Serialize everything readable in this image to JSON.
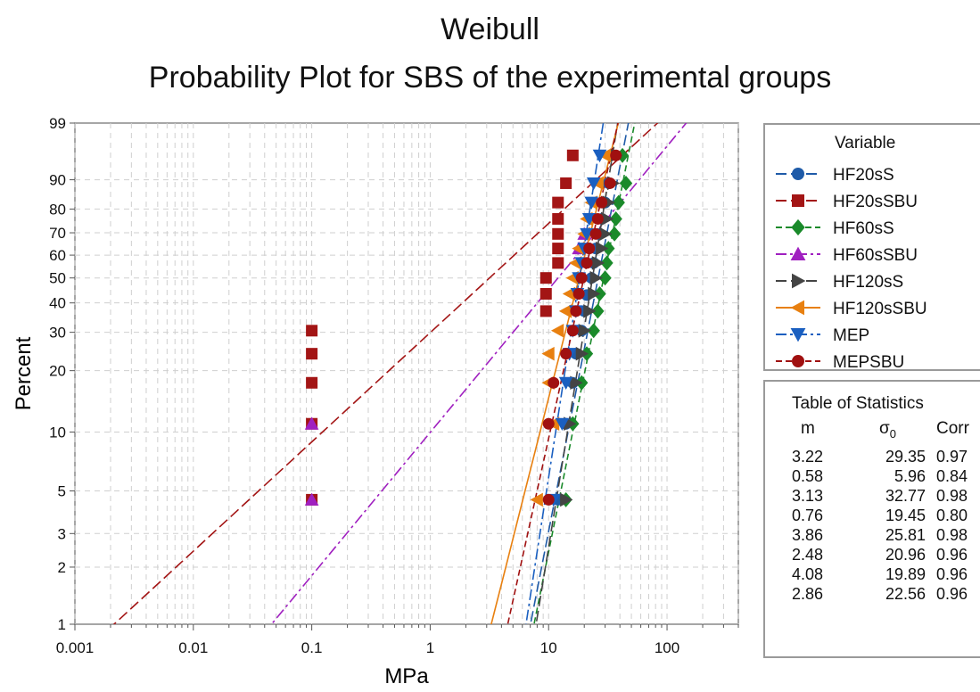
{
  "title": "Weibull",
  "subtitle": "Probability Plot for SBS of the experimental groups",
  "chart_data": {
    "type": "scatter",
    "xlabel": "MPa",
    "ylabel": "Percent",
    "xscale": "log",
    "yscale": "weibull",
    "xlim": [
      0.001,
      400
    ],
    "ylim": [
      1,
      99
    ],
    "xticks": [
      "0.001",
      "0.01",
      "0.1",
      "1",
      "10",
      "100"
    ],
    "yticks": [
      "1",
      "2",
      "3",
      "5",
      "10",
      "20",
      "30",
      "40",
      "50",
      "60",
      "70",
      "80",
      "90",
      "99"
    ],
    "grid": true,
    "legend_title": "Variable",
    "legend_position": "right",
    "series": [
      {
        "name": "HF20sS",
        "color": "#1f5ba8",
        "marker": "circle",
        "line": "long-dash",
        "m": 3.22,
        "s0": 29.35,
        "points": [
          [
            12,
            4.5
          ],
          [
            14,
            11
          ],
          [
            16,
            17.5
          ],
          [
            17,
            24
          ],
          [
            19,
            30.5
          ],
          [
            20,
            37
          ],
          [
            21,
            43
          ],
          [
            23,
            50
          ],
          [
            24,
            56.5
          ],
          [
            25,
            63
          ],
          [
            26,
            69.5
          ],
          [
            28,
            76
          ],
          [
            30,
            82.5
          ],
          [
            32,
            89
          ]
        ]
      },
      {
        "name": "HF20sSBU",
        "color": "#a31515",
        "marker": "square",
        "line": "long-dash",
        "m": 0.58,
        "s0": 5.96,
        "points": [
          [
            0.1,
            4.5
          ],
          [
            0.1,
            11
          ],
          [
            0.1,
            17.5
          ],
          [
            0.1,
            24
          ],
          [
            0.1,
            30.5
          ],
          [
            9.5,
            37
          ],
          [
            9.5,
            43.5
          ],
          [
            9.5,
            50
          ],
          [
            12,
            56.5
          ],
          [
            12,
            63
          ],
          [
            12,
            69.5
          ],
          [
            12,
            76
          ],
          [
            12,
            82.5
          ],
          [
            14,
            89
          ],
          [
            16,
            95.5
          ]
        ]
      },
      {
        "name": "HF60sS",
        "color": "#1a8a2a",
        "marker": "diamond",
        "line": "dash",
        "m": 3.13,
        "s0": 32.77,
        "points": [
          [
            14,
            4.5
          ],
          [
            16,
            11
          ],
          [
            19,
            17.5
          ],
          [
            21,
            24
          ],
          [
            24,
            30.5
          ],
          [
            26,
            37
          ],
          [
            27,
            43.5
          ],
          [
            30,
            50
          ],
          [
            31,
            56.5
          ],
          [
            32,
            63
          ],
          [
            36,
            69.5
          ],
          [
            37,
            76
          ],
          [
            39,
            82.5
          ],
          [
            45,
            89
          ],
          [
            42,
            95.5
          ]
        ]
      },
      {
        "name": "HF60sSBU",
        "color": "#a020c0",
        "marker": "triangle-up",
        "line": "dash-dot",
        "m": 0.76,
        "s0": 19.45,
        "points": [
          [
            0.1,
            4.5
          ],
          [
            0.1,
            11
          ],
          [
            18,
            63
          ],
          [
            20,
            69.5
          ]
        ]
      },
      {
        "name": "HF120sS",
        "color": "#444444",
        "marker": "triangle-right",
        "line": "long-dash",
        "m": 3.86,
        "s0": 25.81,
        "points": [
          [
            14,
            4.5
          ],
          [
            15,
            11
          ],
          [
            17,
            17.5
          ],
          [
            19,
            24
          ],
          [
            20,
            30.5
          ],
          [
            22,
            37
          ],
          [
            24,
            43.5
          ],
          [
            25,
            50
          ],
          [
            26,
            56.5
          ],
          [
            28,
            63
          ],
          [
            30,
            69.5
          ],
          [
            31,
            76
          ],
          [
            32,
            82.5
          ],
          [
            35,
            89
          ],
          [
            37,
            95.5
          ]
        ]
      },
      {
        "name": "HF120sSBU",
        "color": "#e88010",
        "marker": "triangle-left",
        "line": "solid",
        "m": 2.48,
        "s0": 20.96,
        "points": [
          [
            8,
            4.5
          ],
          [
            11,
            11
          ],
          [
            10,
            17.5
          ],
          [
            10,
            24
          ],
          [
            12,
            30.5
          ],
          [
            14,
            37
          ],
          [
            15,
            43.5
          ],
          [
            16,
            50
          ],
          [
            17,
            56.5
          ],
          [
            18,
            63
          ],
          [
            20,
            69.5
          ],
          [
            21,
            76
          ],
          [
            23,
            82.5
          ],
          [
            26,
            89
          ],
          [
            30,
            95.5
          ]
        ]
      },
      {
        "name": "MEP",
        "color": "#1a5fc0",
        "marker": "triangle-down",
        "line": "dash-dot",
        "m": 4.08,
        "s0": 19.89,
        "points": [
          [
            11,
            4.5
          ],
          [
            13,
            11
          ],
          [
            14,
            17.5
          ],
          [
            15,
            24
          ],
          [
            16,
            30.5
          ],
          [
            17,
            37
          ],
          [
            17.5,
            43.5
          ],
          [
            18,
            50
          ],
          [
            19,
            56.5
          ],
          [
            20,
            63
          ],
          [
            21,
            69.5
          ],
          [
            22,
            76
          ],
          [
            23,
            82.5
          ],
          [
            24,
            89
          ],
          [
            27,
            95.5
          ]
        ]
      },
      {
        "name": "MEPSBU",
        "color": "#a01010",
        "marker": "circle",
        "line": "dash",
        "m": 2.86,
        "s0": 22.56,
        "points": [
          [
            10,
            4.5
          ],
          [
            10,
            11
          ],
          [
            11,
            17.5
          ],
          [
            14,
            24
          ],
          [
            16,
            30.5
          ],
          [
            17,
            37
          ],
          [
            18,
            43.5
          ],
          [
            19,
            50
          ],
          [
            21,
            56.5
          ],
          [
            22,
            63
          ],
          [
            25,
            69.5
          ],
          [
            26,
            76
          ],
          [
            28,
            82.5
          ],
          [
            33,
            89
          ],
          [
            37,
            95.5
          ]
        ]
      }
    ],
    "statistics": {
      "title": "Table of Statistics",
      "columns": [
        "m",
        "σ",
        "0",
        "Corr"
      ],
      "rows": [
        [
          "3.22",
          "29.35",
          "0.97"
        ],
        [
          "0.58",
          "5.96",
          "0.84"
        ],
        [
          "3.13",
          "32.77",
          "0.98"
        ],
        [
          "0.76",
          "19.45",
          "0.80"
        ],
        [
          "3.86",
          "25.81",
          "0.98"
        ],
        [
          "2.48",
          "20.96",
          "0.96"
        ],
        [
          "4.08",
          "19.89",
          "0.96"
        ],
        [
          "2.86",
          "22.56",
          "0.96"
        ]
      ]
    }
  }
}
